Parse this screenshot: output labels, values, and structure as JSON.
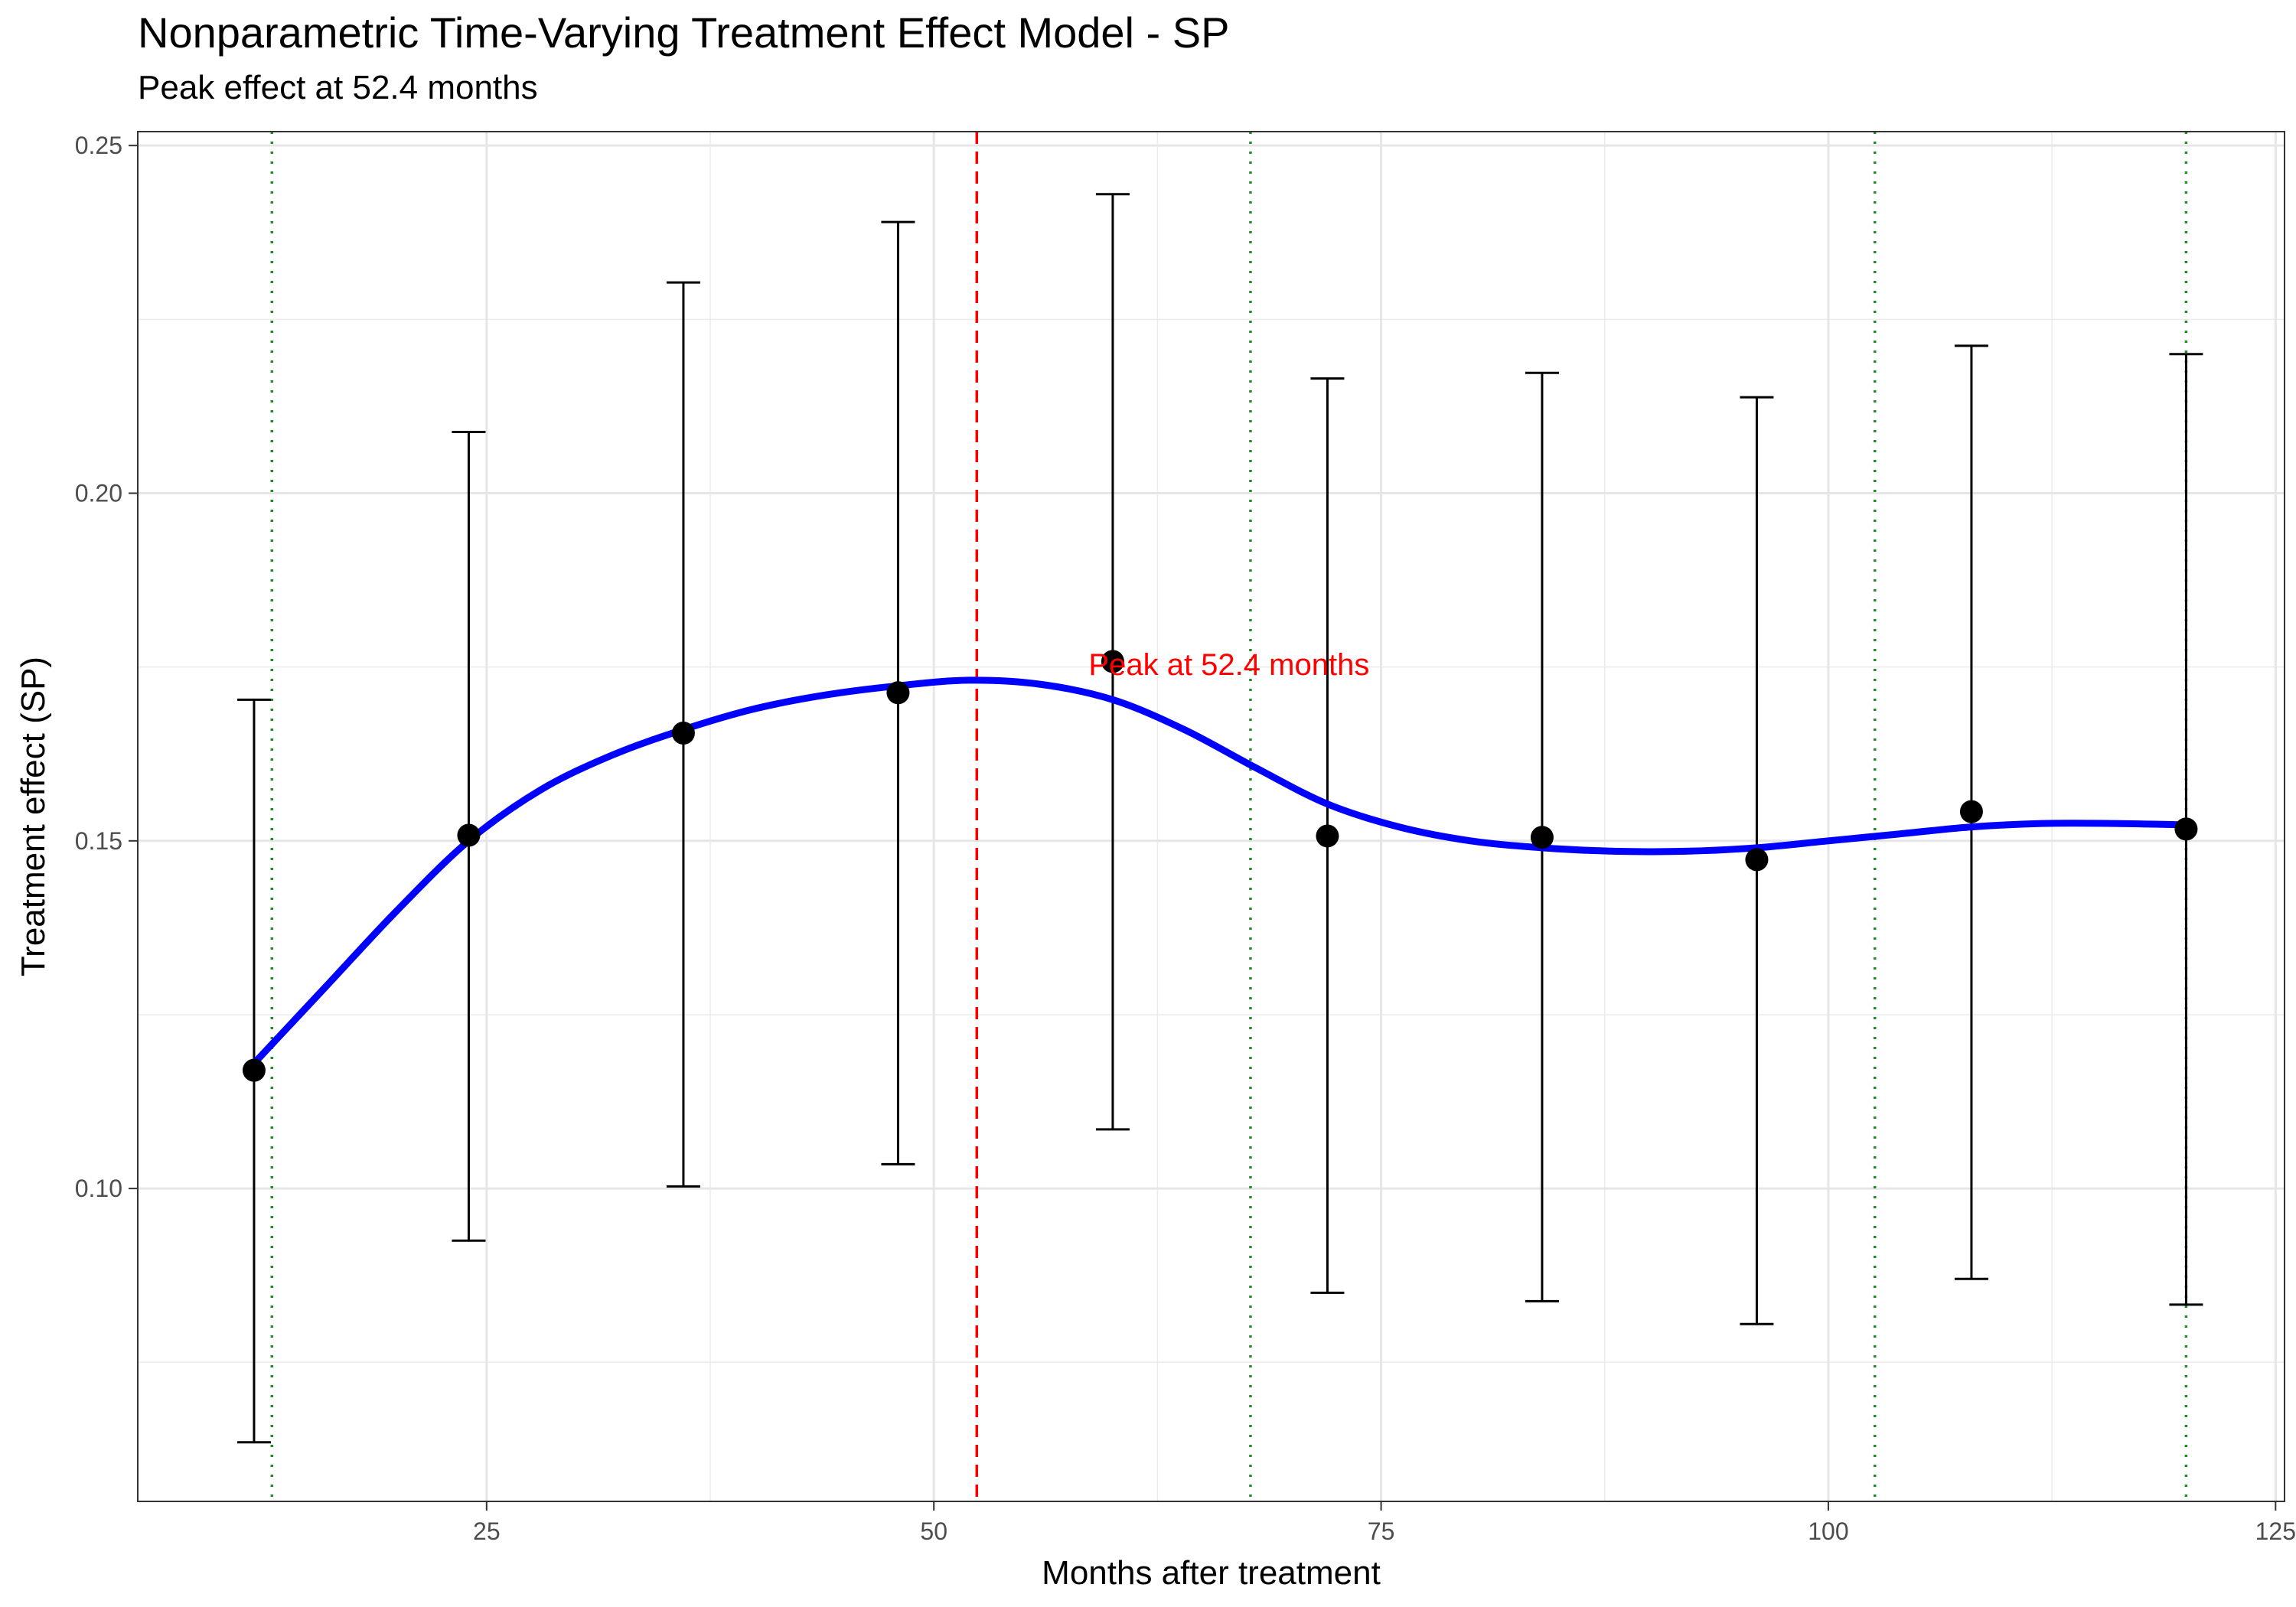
{
  "chart_data": {
    "type": "line",
    "title": "Nonparametric Time-Varying Treatment Effect Model - SP",
    "subtitle": "Peak effect at 52.4 months",
    "xlabel": "Months after treatment",
    "ylabel": "Treatment effect (SP)",
    "xlim": [
      5.5,
      125.5
    ],
    "ylim": [
      0.055,
      0.252
    ],
    "x_ticks": [
      25,
      50,
      75,
      100,
      125
    ],
    "y_ticks": [
      0.1,
      0.15,
      0.2,
      0.25
    ],
    "x_tick_labels": [
      "25",
      "50",
      "75",
      "100",
      "125"
    ],
    "y_tick_labels": [
      "0.10",
      "0.15",
      "0.20",
      "0.25"
    ],
    "grid": true,
    "theme": "bw",
    "series": [
      {
        "kind": "points_with_errorbars",
        "color": "#000000",
        "x": [
          12,
          24,
          36,
          48,
          60,
          72,
          84,
          96,
          108,
          120
        ],
        "y": [
          0.117,
          0.1508,
          0.1655,
          0.1713,
          0.1758,
          0.1507,
          0.1505,
          0.1473,
          0.1542,
          0.1517
        ],
        "lower": [
          0.0635,
          0.0925,
          0.1003,
          0.1035,
          0.1085,
          0.085,
          0.0838,
          0.0805,
          0.087,
          0.0833
        ],
        "upper": [
          0.1703,
          0.2088,
          0.2303,
          0.239,
          0.243,
          0.2165,
          0.2173,
          0.2138,
          0.2212,
          0.22
        ]
      },
      {
        "kind": "smooth_line",
        "color": "#0000FF",
        "x": [
          12,
          16,
          20,
          24,
          28,
          32,
          36,
          40,
          44,
          48,
          52,
          56,
          60,
          64,
          68,
          72,
          76,
          80,
          84,
          88,
          92,
          96,
          100,
          104,
          108,
          112,
          116,
          120
        ],
        "y": [
          0.118,
          0.129,
          0.14,
          0.15,
          0.1573,
          0.1623,
          0.166,
          0.169,
          0.171,
          0.1723,
          0.1731,
          0.1725,
          0.1703,
          0.166,
          0.1605,
          0.1553,
          0.152,
          0.15,
          0.149,
          0.1485,
          0.1485,
          0.149,
          0.15,
          0.151,
          0.152,
          0.1525,
          0.1525,
          0.1523
        ]
      }
    ],
    "vlines": [
      {
        "x": 52.4,
        "color": "#FF0000",
        "style": "dashed"
      },
      {
        "x": 13,
        "color": "#228B22",
        "style": "dotted"
      },
      {
        "x": 67.7,
        "color": "#228B22",
        "style": "dotted"
      },
      {
        "x": 102.6,
        "color": "#228B22",
        "style": "dotted"
      },
      {
        "x": 120,
        "color": "#228B22",
        "style": "dotted"
      }
    ],
    "annotations": [
      {
        "text": "Peak at 52.4 months",
        "x": 66.5,
        "y": 0.175,
        "color": "#FF0000"
      }
    ]
  }
}
